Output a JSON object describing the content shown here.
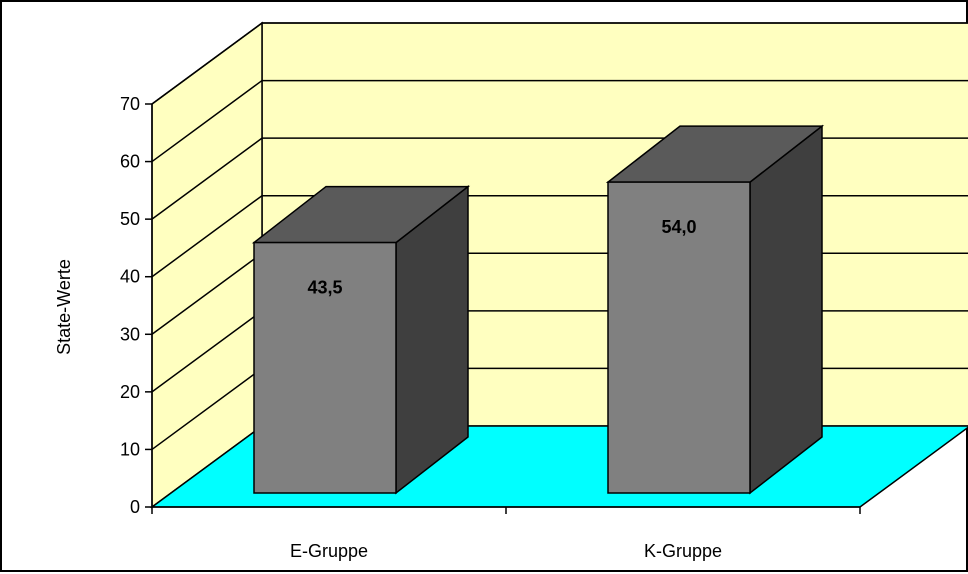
{
  "chart_data": {
    "type": "bar",
    "categories": [
      "E-Gruppe",
      "K-Gruppe"
    ],
    "values": [
      43.5,
      54.0
    ],
    "data_labels": [
      "43,5",
      "54,0"
    ],
    "title": "",
    "xlabel": "",
    "ylabel": "State-Werte",
    "ylim": [
      0,
      70
    ],
    "yticks": [
      "0",
      "10",
      "20",
      "30",
      "40",
      "50",
      "60",
      "70"
    ],
    "grid": true,
    "legend": "none",
    "style": "3d-column",
    "colors": {
      "wall": "#FFFFC0",
      "floor": "#00FFFF",
      "bar_front": "#808080",
      "bar_top": "#5A5A5A",
      "bar_side": "#3F3F3F",
      "lines": "#000000"
    }
  }
}
